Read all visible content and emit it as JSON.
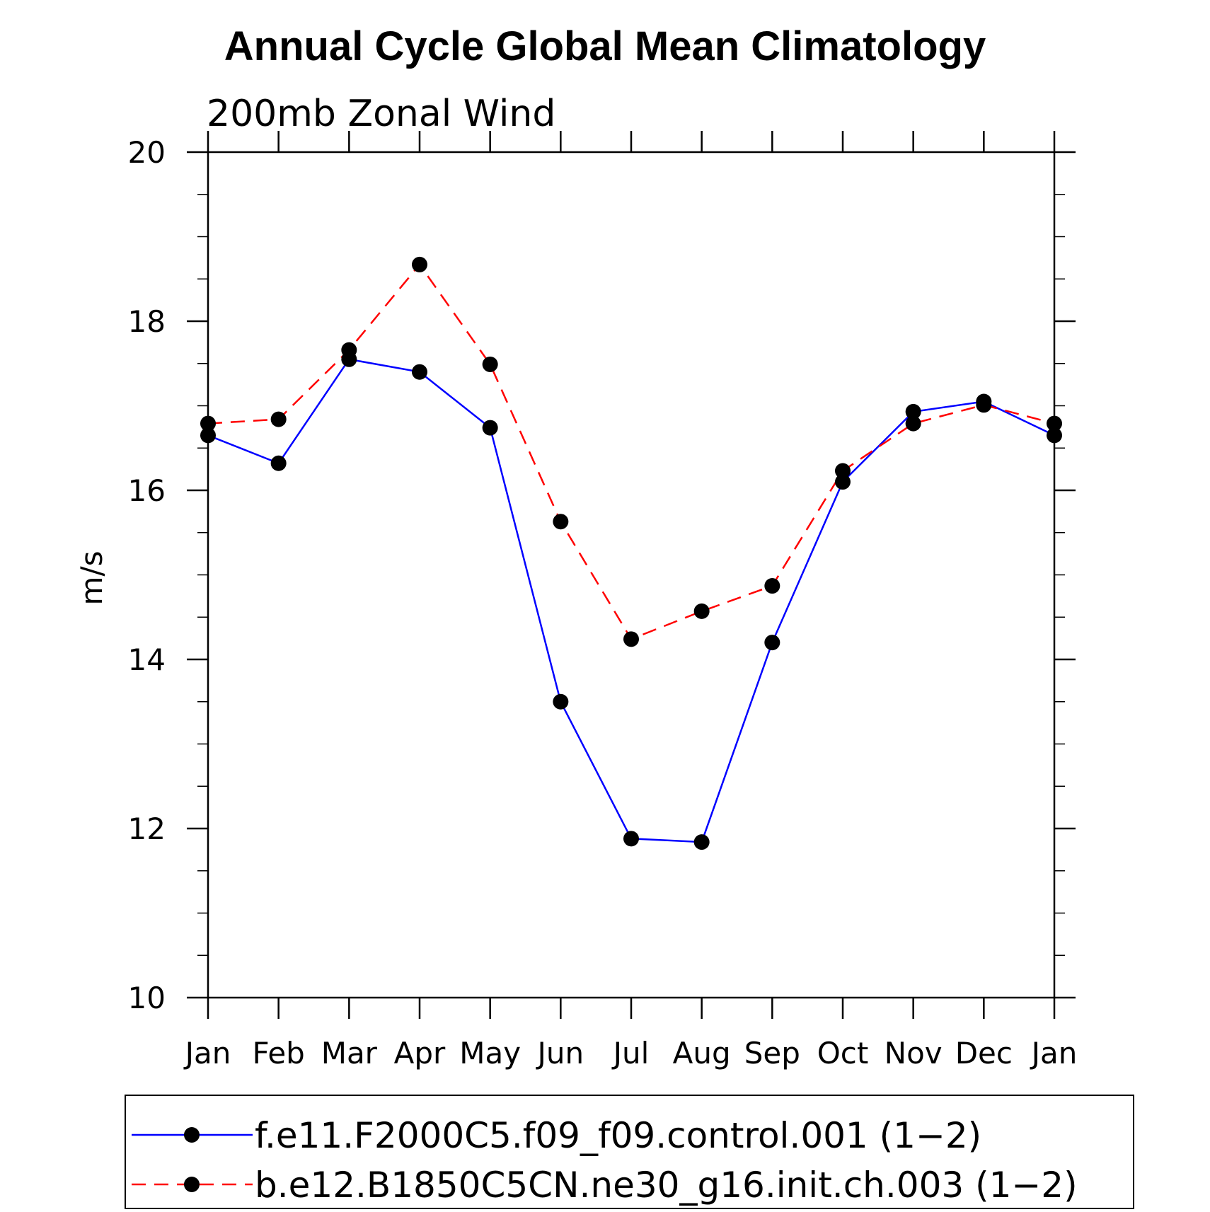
{
  "chart_data": {
    "type": "line",
    "title": "Annual Cycle Global Mean Climatology",
    "subtitle": "200mb Zonal Wind",
    "xlabel": "",
    "ylabel": "m/s",
    "ylim": [
      10,
      20
    ],
    "yticks": [
      10,
      12,
      14,
      16,
      18,
      20
    ],
    "y_minor_step": 0.5,
    "categories": [
      "Jan",
      "Feb",
      "Mar",
      "Apr",
      "May",
      "Jun",
      "Jul",
      "Aug",
      "Sep",
      "Oct",
      "Nov",
      "Dec",
      "Jan"
    ],
    "grid": false,
    "legend_position": "bottom",
    "series": [
      {
        "name": "f.e11.F2000C5.f09_f09.control.001 (1−2)",
        "color": "#0000ff",
        "dash": "solid",
        "marker": "filled-circle",
        "values": [
          16.65,
          16.32,
          17.55,
          17.4,
          16.74,
          13.5,
          11.88,
          11.84,
          14.2,
          16.1,
          16.93,
          17.05,
          16.65
        ]
      },
      {
        "name": "b.e12.B1850C5CN.ne30_g16.init.ch.003 (1−2)",
        "color": "#ff0000",
        "dash": "dashed",
        "marker": "filled-circle",
        "values": [
          16.79,
          16.84,
          17.66,
          18.67,
          17.49,
          15.63,
          14.24,
          14.57,
          14.87,
          16.23,
          16.79,
          17.01,
          16.79
        ]
      }
    ]
  }
}
